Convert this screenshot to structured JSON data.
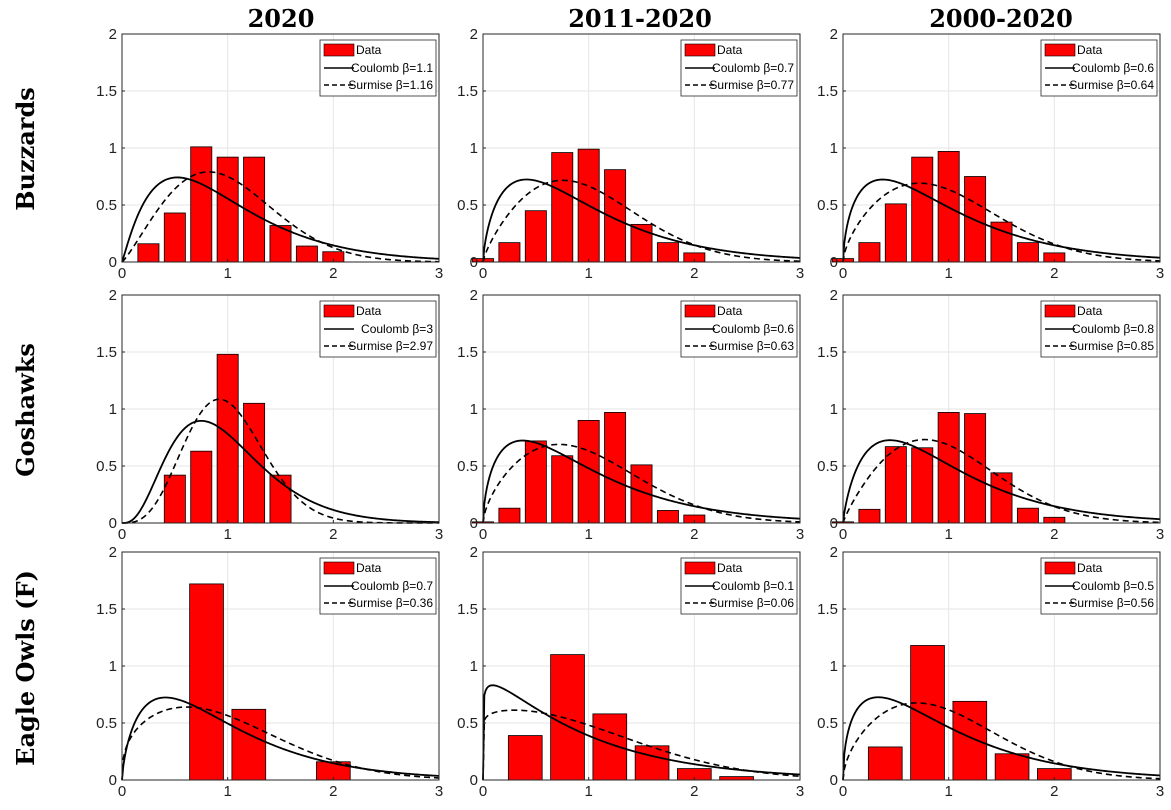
{
  "column_titles": [
    "2020",
    "2011-2020",
    "2000-2020"
  ],
  "row_titles": [
    "Buzzards",
    "Goshawks",
    "Eagle Owls (F)"
  ],
  "chart_data": [
    {
      "type": "bar",
      "row": 0,
      "col": 0,
      "xlim": [
        0,
        3
      ],
      "ylim": [
        0,
        2
      ],
      "xticks": [
        "0",
        "1",
        "2",
        "3"
      ],
      "yticks": [
        "0",
        "0.5",
        "1",
        "1.5",
        "2"
      ],
      "grid": true,
      "legend_placement": "top-right",
      "bars": {
        "name": "Data",
        "x": [
          0.25,
          0.5,
          0.75,
          1.0,
          1.25,
          1.5,
          1.75,
          2.0
        ],
        "values": [
          0.16,
          0.43,
          1.01,
          0.92,
          0.92,
          0.32,
          0.14,
          0.09
        ],
        "width": 0.2
      },
      "coulomb": {
        "label": "Coulomb β=1.1",
        "beta": 1.1
      },
      "surmise": {
        "label": "Surmise β=1.16",
        "beta": 1.16
      }
    },
    {
      "type": "bar",
      "row": 0,
      "col": 1,
      "xlim": [
        0,
        3
      ],
      "ylim": [
        0,
        2
      ],
      "xticks": [
        "0",
        "1",
        "2",
        "3"
      ],
      "yticks": [
        "0",
        "0.5",
        "1",
        "1.5",
        "2"
      ],
      "grid": true,
      "legend_placement": "top-right",
      "bars": {
        "name": "Data",
        "x": [
          0.0,
          0.25,
          0.5,
          0.75,
          1.0,
          1.25,
          1.5,
          1.75,
          2.0
        ],
        "values": [
          0.03,
          0.17,
          0.45,
          0.96,
          0.99,
          0.81,
          0.33,
          0.17,
          0.08
        ],
        "width": 0.2
      },
      "coulomb": {
        "label": "Coulomb β=0.7",
        "beta": 0.7
      },
      "surmise": {
        "label": "Surmise β=0.77",
        "beta": 0.77
      }
    },
    {
      "type": "bar",
      "row": 0,
      "col": 2,
      "xlim": [
        0,
        3
      ],
      "ylim": [
        0,
        2
      ],
      "xticks": [
        "0",
        "1",
        "2",
        "3"
      ],
      "yticks": [
        "0",
        "0.5",
        "1",
        "1.5",
        "2"
      ],
      "grid": true,
      "legend_placement": "top-right",
      "bars": {
        "name": "Data",
        "x": [
          0.0,
          0.25,
          0.5,
          0.75,
          1.0,
          1.25,
          1.5,
          1.75,
          2.0
        ],
        "values": [
          0.03,
          0.17,
          0.51,
          0.92,
          0.97,
          0.75,
          0.35,
          0.17,
          0.08
        ],
        "width": 0.2
      },
      "coulomb": {
        "label": "Coulomb β=0.6",
        "beta": 0.6
      },
      "surmise": {
        "label": "Surmise β=0.64",
        "beta": 0.64
      }
    },
    {
      "type": "bar",
      "row": 1,
      "col": 0,
      "xlim": [
        0,
        3
      ],
      "ylim": [
        0,
        2
      ],
      "xticks": [
        "0",
        "1",
        "2",
        "3"
      ],
      "yticks": [
        "0",
        "0.5",
        "1",
        "1.5",
        "2"
      ],
      "grid": true,
      "legend_placement": "top-right",
      "bars": {
        "name": "Data",
        "x": [
          0.5,
          0.75,
          1.0,
          1.25,
          1.5
        ],
        "values": [
          0.42,
          0.63,
          1.48,
          1.05,
          0.42
        ],
        "width": 0.2
      },
      "coulomb": {
        "label": "Coulomb β=3",
        "beta": 3
      },
      "surmise": {
        "label": "Surmise β=2.97",
        "beta": 2.97
      }
    },
    {
      "type": "bar",
      "row": 1,
      "col": 1,
      "xlim": [
        0,
        3
      ],
      "ylim": [
        0,
        2
      ],
      "xticks": [
        "0",
        "1",
        "2",
        "3"
      ],
      "yticks": [
        "0",
        "0.5",
        "1",
        "1.5",
        "2"
      ],
      "grid": true,
      "legend_placement": "top-right",
      "bars": {
        "name": "Data",
        "x": [
          0.0,
          0.25,
          0.5,
          0.75,
          1.0,
          1.25,
          1.5,
          1.75,
          2.0
        ],
        "values": [
          0.01,
          0.13,
          0.72,
          0.59,
          0.9,
          0.97,
          0.51,
          0.11,
          0.07
        ],
        "width": 0.2
      },
      "coulomb": {
        "label": "Coulomb β=0.6",
        "beta": 0.6
      },
      "surmise": {
        "label": "Surmise β=0.63",
        "beta": 0.63
      }
    },
    {
      "type": "bar",
      "row": 1,
      "col": 2,
      "xlim": [
        0,
        3
      ],
      "ylim": [
        0,
        2
      ],
      "xticks": [
        "0",
        "1",
        "2",
        "3"
      ],
      "yticks": [
        "0",
        "0.5",
        "1",
        "1.5",
        "2"
      ],
      "grid": true,
      "legend_placement": "top-right",
      "bars": {
        "name": "Data",
        "x": [
          0.0,
          0.25,
          0.5,
          0.75,
          1.0,
          1.25,
          1.5,
          1.75,
          2.0
        ],
        "values": [
          0.01,
          0.12,
          0.67,
          0.66,
          0.97,
          0.96,
          0.44,
          0.13,
          0.05
        ],
        "width": 0.2
      },
      "coulomb": {
        "label": "Coulomb β=0.8",
        "beta": 0.8
      },
      "surmise": {
        "label": "Surmise β=0.85",
        "beta": 0.85
      }
    },
    {
      "type": "bar",
      "row": 2,
      "col": 0,
      "xlim": [
        0,
        3
      ],
      "ylim": [
        0,
        2
      ],
      "xticks": [
        "0",
        "1",
        "2",
        "3"
      ],
      "yticks": [
        "0",
        "0.5",
        "1",
        "1.5",
        "2"
      ],
      "grid": true,
      "legend_placement": "top-right",
      "bars": {
        "name": "Data",
        "x": [
          0.8,
          1.2,
          2.0
        ],
        "values": [
          1.72,
          0.62,
          0.16
        ],
        "width": 0.32
      },
      "coulomb": {
        "label": "Coulomb β=0.7",
        "beta": 0.7
      },
      "surmise": {
        "label": "Surmise β=0.36",
        "beta": 0.36
      }
    },
    {
      "type": "bar",
      "row": 2,
      "col": 1,
      "xlim": [
        0,
        3
      ],
      "ylim": [
        0,
        2
      ],
      "xticks": [
        "0",
        "1",
        "2",
        "3"
      ],
      "yticks": [
        "0",
        "0.5",
        "1",
        "1.5",
        "2"
      ],
      "grid": true,
      "legend_placement": "top-right",
      "bars": {
        "name": "Data",
        "x": [
          0.4,
          0.8,
          1.2,
          1.6,
          2.0,
          2.4
        ],
        "values": [
          0.39,
          1.1,
          0.58,
          0.3,
          0.1,
          0.03
        ],
        "width": 0.32
      },
      "coulomb": {
        "label": "Coulomb β=0.1",
        "beta": 0.1
      },
      "surmise": {
        "label": "Surmise β=0.06",
        "beta": 0.06
      }
    },
    {
      "type": "bar",
      "row": 2,
      "col": 2,
      "xlim": [
        0,
        3
      ],
      "ylim": [
        0,
        2
      ],
      "xticks": [
        "0",
        "1",
        "2",
        "3"
      ],
      "yticks": [
        "0",
        "0.5",
        "1",
        "1.5",
        "2"
      ],
      "grid": true,
      "legend_placement": "top-right",
      "bars": {
        "name": "Data",
        "x": [
          0.4,
          0.8,
          1.2,
          1.6,
          2.0
        ],
        "values": [
          0.29,
          1.18,
          0.69,
          0.23,
          0.1
        ],
        "width": 0.32
      },
      "coulomb": {
        "label": "Coulomb β=0.5",
        "beta": 0.5
      },
      "surmise": {
        "label": "Surmise β=0.56",
        "beta": 0.56
      }
    }
  ],
  "colors": {
    "bar_fill": "#ff0000",
    "bar_edge": "#000000",
    "curve": "#000000",
    "grid": "#e6e6e6",
    "axis": "#262626"
  }
}
